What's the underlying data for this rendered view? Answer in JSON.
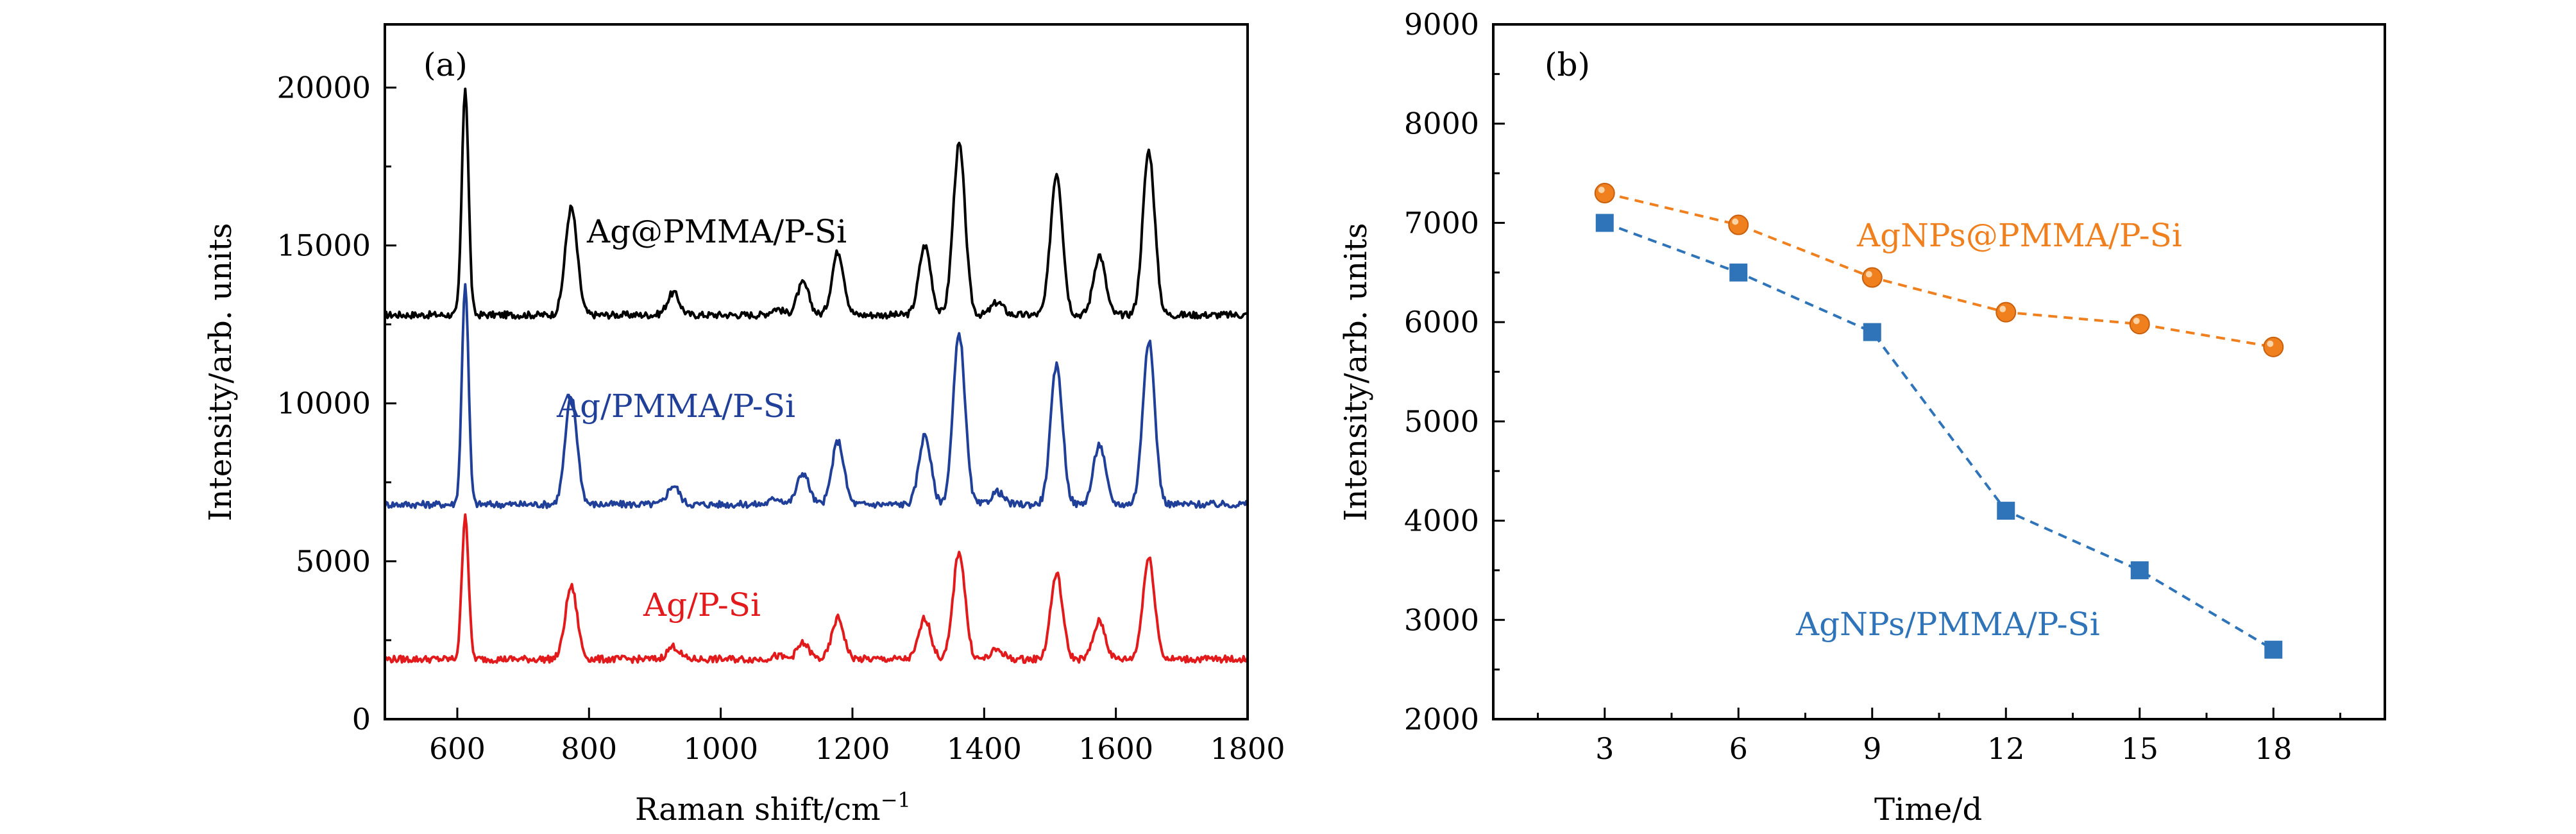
{
  "chart_data": [
    {
      "type": "line",
      "panel_label": "(a)",
      "xlabel": "Raman shift/cm",
      "xlabel_sup": "−1",
      "ylabel": "Intensity/arb. units",
      "xlim": [
        490,
        1800
      ],
      "ylim": [
        0,
        22000
      ],
      "xticks": [
        600,
        800,
        1000,
        1200,
        1400,
        1600,
        1800
      ],
      "yticks": [
        0,
        5000,
        10000,
        15000,
        20000
      ],
      "grid": false,
      "peaks": [
        612,
        773,
        928,
        1085,
        1125,
        1178,
        1310,
        1362,
        1420,
        1510,
        1575,
        1650
      ],
      "series": [
        {
          "name": "Ag@PMMA/P-Si",
          "color": "#000000",
          "baseline": 12800,
          "peak_heights": [
            20000,
            16200,
            13500,
            13000,
            13800,
            14800,
            15000,
            18200,
            13200,
            17300,
            14700,
            18000
          ]
        },
        {
          "name": "Ag/PMMA/P-Si",
          "color": "#1f3f99",
          "baseline": 6800,
          "peak_heights": [
            13800,
            10200,
            7400,
            7000,
            7800,
            8800,
            9000,
            12200,
            7200,
            11200,
            8700,
            12000
          ]
        },
        {
          "name": "Ag/P-Si",
          "color": "#e31a1c",
          "baseline": 1900,
          "peak_heights": [
            6500,
            4200,
            2300,
            2000,
            2400,
            3200,
            3200,
            5300,
            2200,
            4600,
            3100,
            5100
          ]
        }
      ]
    },
    {
      "type": "line",
      "panel_label": "(b)",
      "xlabel": "Time/d",
      "ylabel": "Intensity/arb. units",
      "xlim": [
        0.5,
        20.5
      ],
      "ylim": [
        2000,
        9000
      ],
      "xticks": [
        3,
        6,
        9,
        12,
        15,
        18
      ],
      "yticks": [
        2000,
        3000,
        4000,
        5000,
        6000,
        7000,
        8000,
        9000
      ],
      "grid": false,
      "x": [
        3,
        6,
        9,
        12,
        15,
        18
      ],
      "series": [
        {
          "name": "AgNPs@PMMA/P-Si",
          "color": "#f07f1e",
          "marker": "circle",
          "line": "dashed",
          "values": [
            7300,
            6980,
            6450,
            6100,
            5980,
            5750
          ]
        },
        {
          "name": "AgNPs/PMMA/P-Si",
          "color": "#2f74b8",
          "marker": "square",
          "line": "dashed",
          "values": [
            7000,
            6500,
            5900,
            4100,
            3500,
            2700
          ]
        }
      ]
    }
  ]
}
